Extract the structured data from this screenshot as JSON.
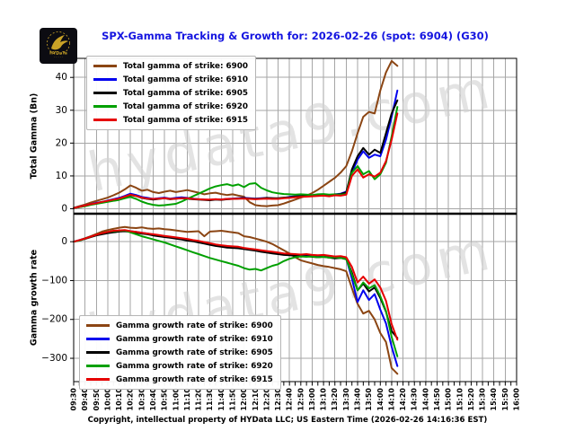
{
  "header": {
    "title": "SPX-Gamma Tracking & Growth for: 2026-02-26 (spot: 6904) (G30)",
    "title_color": "#1515e0"
  },
  "logo": {
    "text": "HYDaTa",
    "dots": "· · · · ·",
    "gold": "#c9a227",
    "bg": "#0c0c12"
  },
  "footer": {
    "copyright": "Copyright, intellectual property of HYData LLC; US Eastern Time (2026-02-26 14:16:36 EST)"
  },
  "watermark": {
    "text": "hydata9.com",
    "color": "#d2d2d2"
  },
  "grid_color": "#a6a6a6",
  "x_axis": {
    "minutes_range": [
      0,
      390
    ],
    "major_step_minutes": 10,
    "minor_step_minutes": 5,
    "tick_labels": [
      "09:30",
      "09:40",
      "09:50",
      "10:00",
      "10:10",
      "10:20",
      "10:30",
      "10:40",
      "10:50",
      "11:00",
      "11:10",
      "11:20",
      "11:30",
      "11:40",
      "11:50",
      "12:00",
      "12:10",
      "12:20",
      "12:30",
      "12:40",
      "12:50",
      "13:00",
      "13:10",
      "13:20",
      "13:30",
      "13:40",
      "13:50",
      "14:00",
      "14:10",
      "14:20",
      "14:30",
      "14:40",
      "14:50",
      "15:00",
      "15:10",
      "15:20",
      "15:30",
      "15:40",
      "15:50",
      "16:00"
    ]
  },
  "x_minutes": [
    0,
    5,
    10,
    15,
    20,
    25,
    30,
    35,
    40,
    45,
    50,
    55,
    60,
    65,
    70,
    75,
    80,
    85,
    90,
    95,
    100,
    105,
    110,
    115,
    120,
    125,
    130,
    135,
    140,
    145,
    150,
    155,
    160,
    165,
    170,
    175,
    180,
    185,
    190,
    195,
    200,
    205,
    210,
    215,
    220,
    225,
    230,
    235,
    240,
    245,
    250,
    255,
    260,
    265,
    270,
    275,
    280,
    285
  ],
  "chart_data": [
    {
      "type": "line",
      "ylabel": "Total Gamma (Bn)",
      "ylim": [
        -1.5,
        45.8
      ],
      "yticks": [
        0,
        10,
        20,
        30,
        40
      ],
      "grid": true,
      "legend_position": "upper-left",
      "series": [
        {
          "name": "Total gamma of strike: 6900",
          "color": "#8B4513",
          "values": [
            0.3,
            0.8,
            1.3,
            1.9,
            2.4,
            2.9,
            3.4,
            4.1,
            4.9,
            5.9,
            7.1,
            6.4,
            5.5,
            5.8,
            5.1,
            4.8,
            5.2,
            5.5,
            5.1,
            5.4,
            5.7,
            5.3,
            4.9,
            4.4,
            4.7,
            4.9,
            4.5,
            4.2,
            4.4,
            4.0,
            3.7,
            2.0,
            1.1,
            0.9,
            0.8,
            1.0,
            1.1,
            1.6,
            2.2,
            2.8,
            3.4,
            4.0,
            4.8,
            5.8,
            7.0,
            8.2,
            9.4,
            11.0,
            13.0,
            17.5,
            23.0,
            28.0,
            29.5,
            29.0,
            36.0,
            41.5,
            45.0,
            43.5
          ]
        },
        {
          "name": "Total gamma of strike: 6910",
          "color": "#0000EE",
          "values": [
            0.2,
            0.6,
            1.0,
            1.4,
            1.8,
            2.1,
            2.5,
            2.9,
            3.3,
            3.9,
            4.6,
            4.2,
            3.6,
            3.3,
            3.0,
            3.2,
            3.4,
            3.1,
            3.3,
            3.5,
            3.3,
            3.1,
            2.9,
            2.8,
            2.7,
            2.9,
            2.8,
            3.0,
            3.1,
            3.2,
            3.3,
            3.2,
            3.1,
            3.2,
            3.3,
            3.2,
            3.1,
            3.3,
            3.6,
            3.8,
            3.9,
            4.0,
            4.1,
            4.2,
            4.3,
            4.2,
            4.4,
            4.6,
            5.2,
            11.0,
            15.0,
            17.5,
            15.5,
            16.5,
            16.0,
            21.0,
            28.0,
            36.0
          ]
        },
        {
          "name": "Total gamma of strike: 6905",
          "color": "#000000",
          "values": [
            0.2,
            0.5,
            0.9,
            1.3,
            1.6,
            2.0,
            2.3,
            2.7,
            3.0,
            3.6,
            4.2,
            3.9,
            3.3,
            3.0,
            2.8,
            3.0,
            3.2,
            2.9,
            3.1,
            3.2,
            3.1,
            2.9,
            2.8,
            2.7,
            2.6,
            2.8,
            2.7,
            2.9,
            3.0,
            3.1,
            3.2,
            3.1,
            3.0,
            3.1,
            3.3,
            3.2,
            3.2,
            3.4,
            3.5,
            3.7,
            3.8,
            3.9,
            4.0,
            4.1,
            4.2,
            4.1,
            4.3,
            4.5,
            5.0,
            12.0,
            16.0,
            18.5,
            16.5,
            18.0,
            17.0,
            23.0,
            29.0,
            33.0
          ]
        },
        {
          "name": "Total gamma of strike: 6920",
          "color": "#00A000",
          "values": [
            0.2,
            0.5,
            0.8,
            1.2,
            1.5,
            1.8,
            2.1,
            2.4,
            2.7,
            3.2,
            3.6,
            3.0,
            2.2,
            1.6,
            1.2,
            1.0,
            1.1,
            1.3,
            1.5,
            2.2,
            3.0,
            3.8,
            4.6,
            5.4,
            6.2,
            6.8,
            7.2,
            7.5,
            7.0,
            7.4,
            6.6,
            7.6,
            7.8,
            6.4,
            5.6,
            5.0,
            4.7,
            4.5,
            4.4,
            4.3,
            4.4,
            4.3,
            4.2,
            4.4,
            4.5,
            4.3,
            4.4,
            4.3,
            4.5,
            11.0,
            13.0,
            10.5,
            11.5,
            9.0,
            10.5,
            14.0,
            22.0,
            31.0
          ]
        },
        {
          "name": "Total gamma of strike: 6915",
          "color": "#E60000",
          "values": [
            0.2,
            0.6,
            1.0,
            1.4,
            1.7,
            2.1,
            2.4,
            2.8,
            3.1,
            3.7,
            4.3,
            3.9,
            3.4,
            3.1,
            3.0,
            3.1,
            3.2,
            3.0,
            3.1,
            3.2,
            3.2,
            3.0,
            2.9,
            2.8,
            2.8,
            2.9,
            2.8,
            3.0,
            3.0,
            3.1,
            3.1,
            3.0,
            2.9,
            3.0,
            3.1,
            3.0,
            3.0,
            3.2,
            3.3,
            3.5,
            3.6,
            3.7,
            3.8,
            3.9,
            4.0,
            3.8,
            4.1,
            4.0,
            4.3,
            10.0,
            12.0,
            9.5,
            10.5,
            9.8,
            11.0,
            14.5,
            21.0,
            29.0
          ]
        }
      ]
    },
    {
      "type": "line",
      "ylabel": "Gamma growth rate",
      "ylim": [
        -360,
        72
      ],
      "yticks": [
        0,
        -100,
        -200,
        -300
      ],
      "grid": true,
      "legend_position": "lower-left",
      "series": [
        {
          "name": "Gamma growth rate of strike: 6900",
          "color": "#8B4513",
          "values": [
            0,
            4,
            9,
            14,
            20,
            26,
            30,
            33,
            36,
            38,
            36,
            35,
            37,
            34,
            33,
            34,
            32,
            31,
            29,
            27,
            25,
            26,
            27,
            14,
            26,
            27,
            28,
            26,
            24,
            22,
            14,
            12,
            8,
            4,
            0,
            -6,
            -14,
            -22,
            -30,
            -40,
            -48,
            -52,
            -56,
            -60,
            -63,
            -65,
            -68,
            -71,
            -76,
            -120,
            -160,
            -185,
            -178,
            -200,
            -235,
            -258,
            -325,
            -340
          ]
        },
        {
          "name": "Gamma growth rate of strike: 6910",
          "color": "#0000EE",
          "values": [
            0,
            4,
            8,
            13,
            17,
            21,
            24,
            26,
            28,
            29,
            27,
            25,
            23,
            21,
            18,
            16,
            14,
            12,
            10,
            8,
            5,
            3,
            0,
            -3,
            -6,
            -9,
            -11,
            -13,
            -14,
            -15,
            -17,
            -19,
            -21,
            -24,
            -26,
            -28,
            -30,
            -32,
            -34,
            -35,
            -36,
            -35,
            -37,
            -38,
            -37,
            -39,
            -41,
            -40,
            -43,
            -95,
            -155,
            -125,
            -150,
            -135,
            -175,
            -210,
            -270,
            -320
          ]
        },
        {
          "name": "Gamma growth rate of strike: 6905",
          "color": "#000000",
          "values": [
            0,
            3,
            7,
            12,
            16,
            19,
            22,
            24,
            26,
            27,
            25,
            23,
            21,
            19,
            16,
            14,
            12,
            10,
            8,
            6,
            3,
            1,
            -2,
            -5,
            -8,
            -11,
            -13,
            -15,
            -16,
            -17,
            -19,
            -21,
            -23,
            -26,
            -28,
            -30,
            -32,
            -34,
            -35,
            -36,
            -38,
            -37,
            -39,
            -40,
            -39,
            -41,
            -43,
            -42,
            -45,
            -80,
            -125,
            -108,
            -128,
            -118,
            -145,
            -180,
            -230,
            -248
          ]
        },
        {
          "name": "Gamma growth rate of strike: 6920",
          "color": "#00A000",
          "values": [
            0,
            3,
            8,
            13,
            18,
            22,
            25,
            27,
            28,
            29,
            24,
            19,
            14,
            10,
            6,
            2,
            -2,
            -7,
            -12,
            -17,
            -22,
            -27,
            -32,
            -37,
            -42,
            -46,
            -50,
            -54,
            -58,
            -62,
            -68,
            -72,
            -70,
            -74,
            -68,
            -62,
            -58,
            -50,
            -44,
            -40,
            -38,
            -39,
            -38,
            -40,
            -39,
            -41,
            -40,
            -42,
            -44,
            -85,
            -125,
            -105,
            -120,
            -112,
            -140,
            -178,
            -245,
            -295
          ]
        },
        {
          "name": "Gamma growth rate of strike: 6915",
          "color": "#E60000",
          "values": [
            0,
            4,
            8,
            13,
            18,
            22,
            25,
            28,
            29,
            30,
            27,
            25,
            23,
            21,
            19,
            17,
            15,
            13,
            11,
            9,
            7,
            4,
            2,
            -1,
            -4,
            -7,
            -9,
            -11,
            -12,
            -13,
            -16,
            -18,
            -20,
            -22,
            -24,
            -26,
            -28,
            -30,
            -31,
            -32,
            -33,
            -32,
            -34,
            -35,
            -34,
            -36,
            -38,
            -37,
            -40,
            -65,
            -105,
            -90,
            -108,
            -97,
            -118,
            -152,
            -212,
            -252
          ]
        }
      ]
    }
  ]
}
